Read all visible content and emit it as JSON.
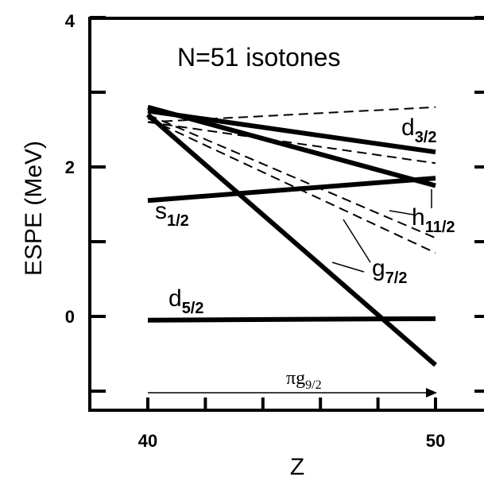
{
  "chart_data": {
    "type": "line",
    "title": "N=51 isotones",
    "xlabel": "Z",
    "ylabel": "ESPE (MeV)",
    "xlim": [
      38,
      51
    ],
    "ylim": [
      -1.3,
      4
    ],
    "x_ticks": [
      40,
      50
    ],
    "y_ticks": [
      0,
      2,
      4
    ],
    "x_minor_ticks": [
      42,
      44,
      46,
      48
    ],
    "y_minor_ticks": [
      -1,
      1,
      3
    ],
    "grid": false,
    "series": [
      {
        "name": "d",
        "sub": "3/2",
        "style": "solid",
        "x": [
          40,
          50
        ],
        "y": [
          2.75,
          2.2
        ]
      },
      {
        "name": "d",
        "sub": "3/2",
        "style": "dashed",
        "x": [
          40,
          50
        ],
        "y": [
          2.6,
          2.8
        ]
      },
      {
        "name": "s",
        "sub": "1/2",
        "style": "solid",
        "x": [
          40,
          50
        ],
        "y": [
          1.55,
          1.85
        ]
      },
      {
        "name": "s",
        "sub": "1/2",
        "style": "dashed",
        "x": [
          40,
          50
        ],
        "y": [
          2.6,
          2.05
        ]
      },
      {
        "name": "h",
        "sub": "11/2",
        "style": "solid",
        "x": [
          40,
          50
        ],
        "y": [
          2.8,
          1.75
        ]
      },
      {
        "name": "h",
        "sub": "11/2",
        "style": "dashed",
        "x": [
          40,
          50
        ],
        "y": [
          2.7,
          1.05
        ]
      },
      {
        "name": "g",
        "sub": "7/2",
        "style": "solid",
        "x": [
          40,
          50
        ],
        "y": [
          2.7,
          -0.65
        ]
      },
      {
        "name": "g",
        "sub": "7/2",
        "style": "dashed",
        "x": [
          40,
          50
        ],
        "y": [
          2.65,
          0.85
        ]
      },
      {
        "name": "d",
        "sub": "5/2",
        "style": "solid",
        "x": [
          40,
          50
        ],
        "y": [
          -0.05,
          -0.03
        ]
      }
    ],
    "annotation": {
      "text": "πg",
      "sub": "9/2",
      "from": 40,
      "to": 50
    }
  }
}
